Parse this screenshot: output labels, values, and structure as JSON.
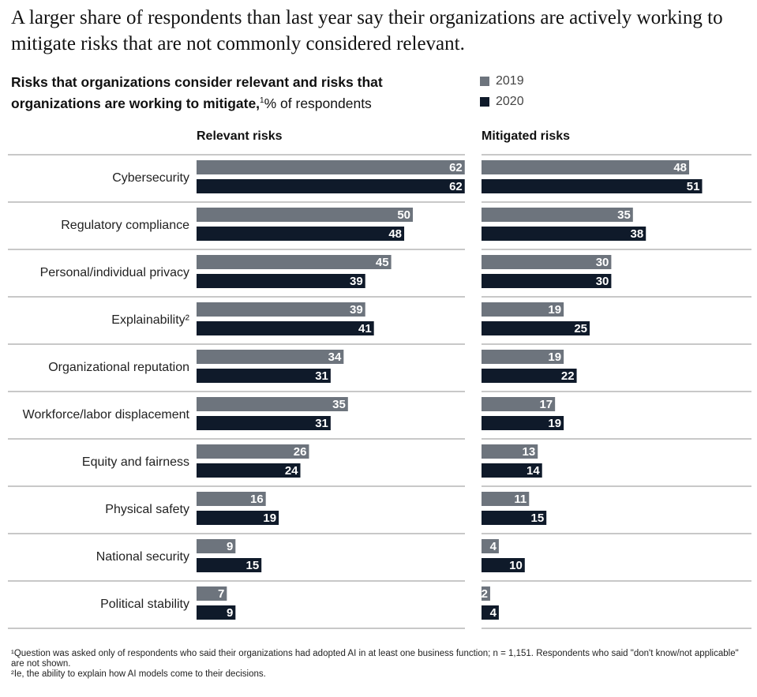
{
  "headline": "A larger share of respondents than last year say their organizations are actively working to mitigate risks that are not commonly considered relevant.",
  "subtitle_bold": "Risks that organizations consider relevant and risks that organizations are working to mitigate,",
  "subtitle_sup": "1",
  "subtitle_unit": "% of respondents",
  "footnotes": [
    "¹Question was asked only of respondents who said their organizations had adopted AI in at least one business function; n = 1,151. Respondents who said \"don't know/not applicable\" are not shown.",
    "²Ie, the ability to explain how AI models come to their decisions."
  ],
  "colors": {
    "2019": "#6d747d",
    "2020": "#0f1a2a",
    "separator": "#b5b5b5"
  },
  "chart_data": [
    {
      "type": "bar",
      "orientation": "horizontal",
      "title": "Relevant risks",
      "categories": [
        "Cybersecurity",
        "Regulatory compliance",
        "Personal/individual privacy",
        "Explainability²",
        "Organizational reputation",
        "Workforce/labor displacement",
        "Equity and fairness",
        "Physical safety",
        "National security",
        "Political stability"
      ],
      "series": [
        {
          "name": "2019",
          "values": [
            62,
            50,
            45,
            39,
            34,
            35,
            26,
            16,
            9,
            7
          ]
        },
        {
          "name": "2020",
          "values": [
            62,
            48,
            39,
            41,
            31,
            31,
            24,
            19,
            15,
            9
          ]
        }
      ],
      "legend": "top-right"
    },
    {
      "type": "bar",
      "orientation": "horizontal",
      "title": "Mitigated risks",
      "categories": [
        "Cybersecurity",
        "Regulatory compliance",
        "Personal/individual privacy",
        "Explainability²",
        "Organizational reputation",
        "Workforce/labor displacement",
        "Equity and fairness",
        "Physical safety",
        "National security",
        "Political stability"
      ],
      "series": [
        {
          "name": "2019",
          "values": [
            48,
            35,
            30,
            19,
            19,
            17,
            13,
            11,
            4,
            2
          ]
        },
        {
          "name": "2020",
          "values": [
            51,
            38,
            30,
            25,
            22,
            19,
            14,
            15,
            10,
            4
          ]
        }
      ]
    }
  ]
}
